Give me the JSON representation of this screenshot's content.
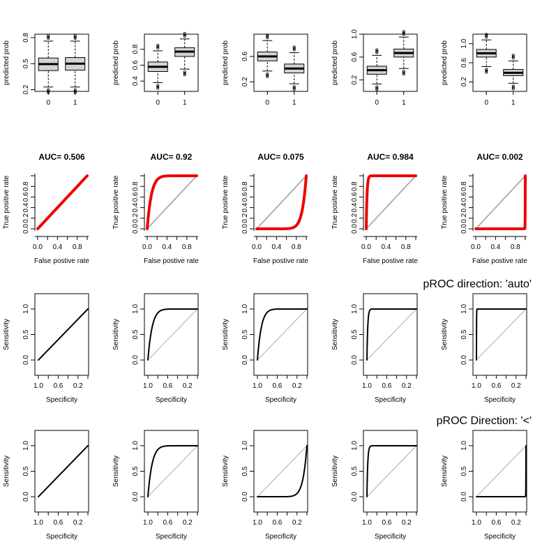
{
  "row_titles": [
    "",
    "",
    "pROC direction: 'auto'",
    "pROC Direction: '<'"
  ],
  "chart_data": [
    {
      "row": 1,
      "col": 1,
      "type": "boxplot",
      "ylabel": "predicted prob",
      "categories": [
        "0",
        "1"
      ],
      "yticks": [
        "0.2",
        "0.5",
        "0.8"
      ],
      "ylim": [
        0.18,
        0.84
      ],
      "boxes": [
        {
          "category": "0",
          "whisker_low": 0.23,
          "q1": 0.42,
          "median": 0.495,
          "q3": 0.565,
          "whisker_high": 0.76
        },
        {
          "category": "1",
          "whisker_low": 0.23,
          "q1": 0.425,
          "median": 0.5,
          "q3": 0.57,
          "whisker_high": 0.76
        }
      ]
    },
    {
      "row": 1,
      "col": 2,
      "type": "boxplot",
      "ylabel": "predicted prob",
      "categories": [
        "0",
        "1"
      ],
      "yticks": [
        "0.4",
        "0.6",
        "0.8"
      ],
      "ylim": [
        0.27,
        0.99
      ],
      "boxes": [
        {
          "category": "0",
          "whisker_low": 0.38,
          "q1": 0.52,
          "median": 0.58,
          "q3": 0.64,
          "whisker_high": 0.78
        },
        {
          "category": "1",
          "whisker_low": 0.55,
          "q1": 0.71,
          "median": 0.77,
          "q3": 0.82,
          "whisker_high": 0.93
        }
      ]
    },
    {
      "row": 1,
      "col": 3,
      "type": "boxplot",
      "ylabel": "predicted prob",
      "categories": [
        "0",
        "1"
      ],
      "yticks": [
        "0.2",
        "0.6"
      ],
      "ylim": [
        0.05,
        0.95
      ],
      "boxes": [
        {
          "category": "0",
          "whisker_low": 0.37,
          "q1": 0.53,
          "median": 0.6,
          "q3": 0.67,
          "whisker_high": 0.85
        },
        {
          "category": "1",
          "whisker_low": 0.17,
          "q1": 0.34,
          "median": 0.41,
          "q3": 0.48,
          "whisker_high": 0.66
        }
      ]
    },
    {
      "row": 1,
      "col": 4,
      "type": "boxplot",
      "ylabel": "predicted prob",
      "categories": [
        "0",
        "1"
      ],
      "yticks": [
        "0.2",
        "0.6",
        "1.0"
      ],
      "ylim": [
        0.0,
        1.0
      ],
      "boxes": [
        {
          "category": "0",
          "whisker_low": 0.13,
          "q1": 0.3,
          "median": 0.37,
          "q3": 0.44,
          "whisker_high": 0.63
        },
        {
          "category": "1",
          "whisker_low": 0.4,
          "q1": 0.6,
          "median": 0.67,
          "q3": 0.74,
          "whisker_high": 0.95
        }
      ]
    },
    {
      "row": 1,
      "col": 5,
      "type": "boxplot",
      "ylabel": "predicted prob",
      "categories": [
        "0",
        "1"
      ],
      "yticks": [
        "0.2",
        "0.6",
        "1.0"
      ],
      "ylim": [
        0.0,
        1.2
      ],
      "boxes": [
        {
          "category": "0",
          "whisker_low": 0.52,
          "q1": 0.72,
          "median": 0.8,
          "q3": 0.88,
          "whisker_high": 1.08
        },
        {
          "category": "1",
          "whisker_low": 0.17,
          "q1": 0.33,
          "median": 0.39,
          "q3": 0.46,
          "whisker_high": 0.64
        }
      ]
    },
    {
      "row": 2,
      "col": 1,
      "type": "line",
      "title": "AUC= 0.506",
      "xlabel": "False postive rate",
      "ylabel": "True positive rate",
      "xticks": [
        "0.0",
        "0.4",
        "0.8"
      ],
      "yticks": [
        "0.0",
        "0.2",
        "0.4",
        "0.6",
        "0.8"
      ],
      "xlim": [
        0,
        1
      ],
      "ylim": [
        0,
        1
      ],
      "auc": 0.506,
      "curve_color": "#ee0000"
    },
    {
      "row": 2,
      "col": 2,
      "type": "line",
      "title": "AUC= 0.92",
      "xlabel": "False postive rate",
      "ylabel": "True positive rate",
      "xticks": [
        "0.0",
        "0.4",
        "0.8"
      ],
      "yticks": [
        "0.0",
        "0.2",
        "0.4",
        "0.6",
        "0.8"
      ],
      "xlim": [
        0,
        1
      ],
      "ylim": [
        0,
        1
      ],
      "auc": 0.92,
      "curve_color": "#ee0000"
    },
    {
      "row": 2,
      "col": 3,
      "type": "line",
      "title": "AUC= 0.075",
      "xlabel": "False postive rate",
      "ylabel": "True positive rate",
      "xticks": [
        "0.0",
        "0.4",
        "0.8"
      ],
      "yticks": [
        "0.0",
        "0.2",
        "0.4",
        "0.6",
        "0.8"
      ],
      "xlim": [
        0,
        1
      ],
      "ylim": [
        0,
        1
      ],
      "auc": 0.075,
      "curve_color": "#ee0000"
    },
    {
      "row": 2,
      "col": 4,
      "type": "line",
      "title": "AUC= 0.984",
      "xlabel": "False postive rate",
      "ylabel": "True positive rate",
      "xticks": [
        "0.0",
        "0.4",
        "0.8"
      ],
      "yticks": [
        "0.0",
        "0.2",
        "0.4",
        "0.6",
        "0.8"
      ],
      "xlim": [
        0,
        1
      ],
      "ylim": [
        0,
        1
      ],
      "auc": 0.984,
      "curve_color": "#ee0000"
    },
    {
      "row": 2,
      "col": 5,
      "type": "line",
      "title": "AUC= 0.002",
      "xlabel": "False postive rate",
      "ylabel": "True positive rate",
      "xticks": [
        "0.0",
        "0.4",
        "0.8"
      ],
      "yticks": [
        "0.0",
        "0.2",
        "0.4",
        "0.6",
        "0.8"
      ],
      "xlim": [
        0,
        1
      ],
      "ylim": [
        0,
        1
      ],
      "auc": 0.002,
      "curve_color": "#ee0000"
    },
    {
      "row": 3,
      "col": 1,
      "type": "line",
      "xlabel": "Specificity",
      "ylabel": "Sensitivity",
      "xticks": [
        "1.0",
        "0.6",
        "0.2"
      ],
      "yticks": [
        "0.0",
        "0.5",
        "1.0"
      ],
      "xlim": [
        1.0,
        0.0
      ],
      "ylim": [
        -0.3,
        1.3
      ],
      "auc": 0.506,
      "curve_color": "#000000"
    },
    {
      "row": 3,
      "col": 2,
      "type": "line",
      "xlabel": "Specificity",
      "ylabel": "Sensitivity",
      "xticks": [
        "1.0",
        "0.6",
        "0.2"
      ],
      "yticks": [
        "0.0",
        "0.5",
        "1.0"
      ],
      "xlim": [
        1.0,
        0.0
      ],
      "ylim": [
        -0.3,
        1.3
      ],
      "auc": 0.92,
      "curve_color": "#000000"
    },
    {
      "row": 3,
      "col": 3,
      "type": "line",
      "xlabel": "Specificity",
      "ylabel": "Sensitivity",
      "xticks": [
        "1.0",
        "0.6",
        "0.2"
      ],
      "yticks": [
        "0.0",
        "0.5",
        "1.0"
      ],
      "xlim": [
        1.0,
        0.0
      ],
      "ylim": [
        -0.3,
        1.3
      ],
      "auc": 0.925,
      "curve_color": "#000000"
    },
    {
      "row": 3,
      "col": 4,
      "type": "line",
      "xlabel": "Specificity",
      "ylabel": "Sensitivity",
      "xticks": [
        "1.0",
        "0.6",
        "0.2"
      ],
      "yticks": [
        "0.0",
        "0.5",
        "1.0"
      ],
      "xlim": [
        1.0,
        0.0
      ],
      "ylim": [
        -0.3,
        1.3
      ],
      "auc": 0.984,
      "curve_color": "#000000"
    },
    {
      "row": 3,
      "col": 5,
      "type": "line",
      "xlabel": "Specificity",
      "ylabel": "Sensitivity",
      "xticks": [
        "1.0",
        "0.6",
        "0.2"
      ],
      "yticks": [
        "0.0",
        "0.5",
        "1.0"
      ],
      "xlim": [
        1.0,
        0.0
      ],
      "ylim": [
        -0.3,
        1.3
      ],
      "auc": 0.998,
      "curve_color": "#000000"
    },
    {
      "row": 4,
      "col": 1,
      "type": "line",
      "xlabel": "Specificity",
      "ylabel": "Sensitivity",
      "xticks": [
        "1.0",
        "0.6",
        "0.2"
      ],
      "yticks": [
        "0.0",
        "0.5",
        "1.0"
      ],
      "xlim": [
        1.0,
        0.0
      ],
      "ylim": [
        -0.3,
        1.3
      ],
      "auc": 0.506,
      "curve_color": "#000000"
    },
    {
      "row": 4,
      "col": 2,
      "type": "line",
      "xlabel": "Specificity",
      "ylabel": "Sensitivity",
      "xticks": [
        "1.0",
        "0.6",
        "0.2"
      ],
      "yticks": [
        "0.0",
        "0.5",
        "1.0"
      ],
      "xlim": [
        1.0,
        0.0
      ],
      "ylim": [
        -0.3,
        1.3
      ],
      "auc": 0.92,
      "curve_color": "#000000"
    },
    {
      "row": 4,
      "col": 3,
      "type": "line",
      "xlabel": "Specificity",
      "ylabel": "Sensitivity",
      "xticks": [
        "1.0",
        "0.6",
        "0.2"
      ],
      "yticks": [
        "0.0",
        "0.5",
        "1.0"
      ],
      "xlim": [
        1.0,
        0.0
      ],
      "ylim": [
        -0.3,
        1.3
      ],
      "auc": 0.075,
      "curve_color": "#000000"
    },
    {
      "row": 4,
      "col": 4,
      "type": "line",
      "xlabel": "Specificity",
      "ylabel": "Sensitivity",
      "xticks": [
        "1.0",
        "0.6",
        "0.2"
      ],
      "yticks": [
        "0.0",
        "0.5",
        "1.0"
      ],
      "xlim": [
        1.0,
        0.0
      ],
      "ylim": [
        -0.3,
        1.3
      ],
      "auc": 0.984,
      "curve_color": "#000000"
    },
    {
      "row": 4,
      "col": 5,
      "type": "line",
      "xlabel": "Specificity",
      "ylabel": "Sensitivity",
      "xticks": [
        "1.0",
        "0.6",
        "0.2"
      ],
      "yticks": [
        "0.0",
        "0.5",
        "1.0"
      ],
      "xlim": [
        1.0,
        0.0
      ],
      "ylim": [
        -0.3,
        1.3
      ],
      "auc": 0.002,
      "curve_color": "#000000"
    }
  ]
}
